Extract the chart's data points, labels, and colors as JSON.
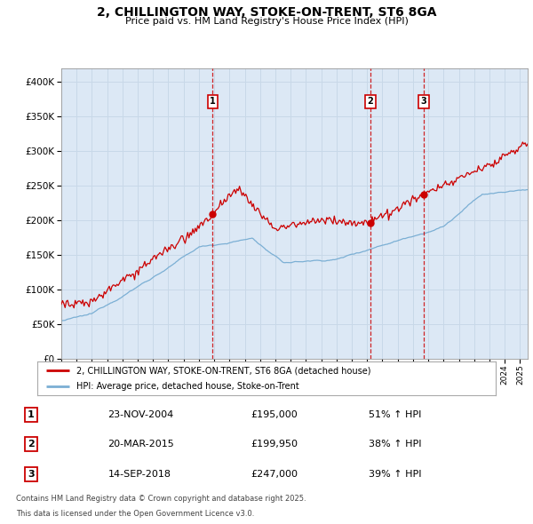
{
  "title": "2, CHILLINGTON WAY, STOKE-ON-TRENT, ST6 8GA",
  "subtitle": "Price paid vs. HM Land Registry's House Price Index (HPI)",
  "ylim": [
    0,
    420000
  ],
  "yticks": [
    0,
    50000,
    100000,
    150000,
    200000,
    250000,
    300000,
    350000,
    400000
  ],
  "red_color": "#cc0000",
  "blue_color": "#7bafd4",
  "vline_color": "#cc0000",
  "grid_color": "#c8d8e8",
  "background_color": "#ffffff",
  "plot_bg_color": "#dce8f5",
  "legend_label_red": "2, CHILLINGTON WAY, STOKE-ON-TRENT, ST6 8GA (detached house)",
  "legend_label_blue": "HPI: Average price, detached house, Stoke-on-Trent",
  "transactions": [
    {
      "num": 1,
      "date": "23-NOV-2004",
      "price": 195000,
      "price_str": "£195,000",
      "hpi_pct": "51%",
      "x_year": 2004.9
    },
    {
      "num": 2,
      "date": "20-MAR-2015",
      "price": 199950,
      "price_str": "£199,950",
      "hpi_pct": "38%",
      "x_year": 2015.22
    },
    {
      "num": 3,
      "date": "14-SEP-2018",
      "price": 247000,
      "price_str": "£247,000",
      "hpi_pct": "39%",
      "x_year": 2018.71
    }
  ],
  "footnote1": "Contains HM Land Registry data © Crown copyright and database right 2025.",
  "footnote2": "This data is licensed under the Open Government Licence v3.0.",
  "xmin": 1995.0,
  "xmax": 2025.5,
  "seed": 12345
}
